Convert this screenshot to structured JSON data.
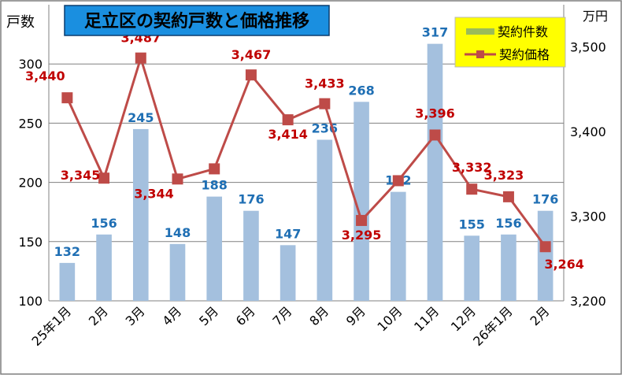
{
  "chart_data": {
    "type": "bar+line",
    "title": "足立区の契約戸数と価格推移",
    "categories": [
      "25年1月",
      "2月",
      "3月",
      "4月",
      "5月",
      "6月",
      "7月",
      "8月",
      "9月",
      "10月",
      "11月",
      "12月",
      "26年1月",
      "2月"
    ],
    "y_left": {
      "label": "戸数",
      "ticks": [
        100,
        150,
        200,
        250,
        300
      ],
      "lim": [
        100,
        350
      ]
    },
    "y_right": {
      "label": "万円",
      "ticks": [
        "3,200",
        "3,300",
        "3,400",
        "3,500"
      ],
      "tick_values": [
        3200,
        3300,
        3400,
        3500
      ],
      "lim": [
        3200,
        3550
      ]
    },
    "series": [
      {
        "name": "契約件数",
        "type": "bar",
        "axis": "left",
        "color": "#a4c0de",
        "label_color": "#1f6fb4",
        "values": [
          132,
          156,
          245,
          148,
          188,
          176,
          147,
          236,
          268,
          192,
          317,
          155,
          156,
          176
        ],
        "labels": [
          "132",
          "156",
          "245",
          "148",
          "188",
          "176",
          "147",
          "236",
          "268",
          "192",
          "317",
          "155",
          "156",
          "176"
        ]
      },
      {
        "name": "契約価格",
        "type": "line",
        "axis": "right",
        "color": "#be4b48",
        "label_color": "#c00000",
        "values": [
          3440,
          3345,
          3487,
          3344,
          3356,
          3467,
          3414,
          3433,
          3295,
          3342,
          3396,
          3332,
          3323,
          3264
        ],
        "labels": [
          "3,440",
          "3,345",
          "3,487",
          "3,344",
          "",
          "3,467",
          "3,414",
          "3,433",
          "3,295",
          "",
          "3,396",
          "3,332",
          "3,323",
          "3,264"
        ]
      }
    ],
    "legend_position": "top-right",
    "grid": true
  },
  "colors": {
    "title_bg": "#1a8fe0",
    "title_text": "#000000",
    "legend_bg": "#ffff00",
    "frame": "#7f7f7f"
  }
}
